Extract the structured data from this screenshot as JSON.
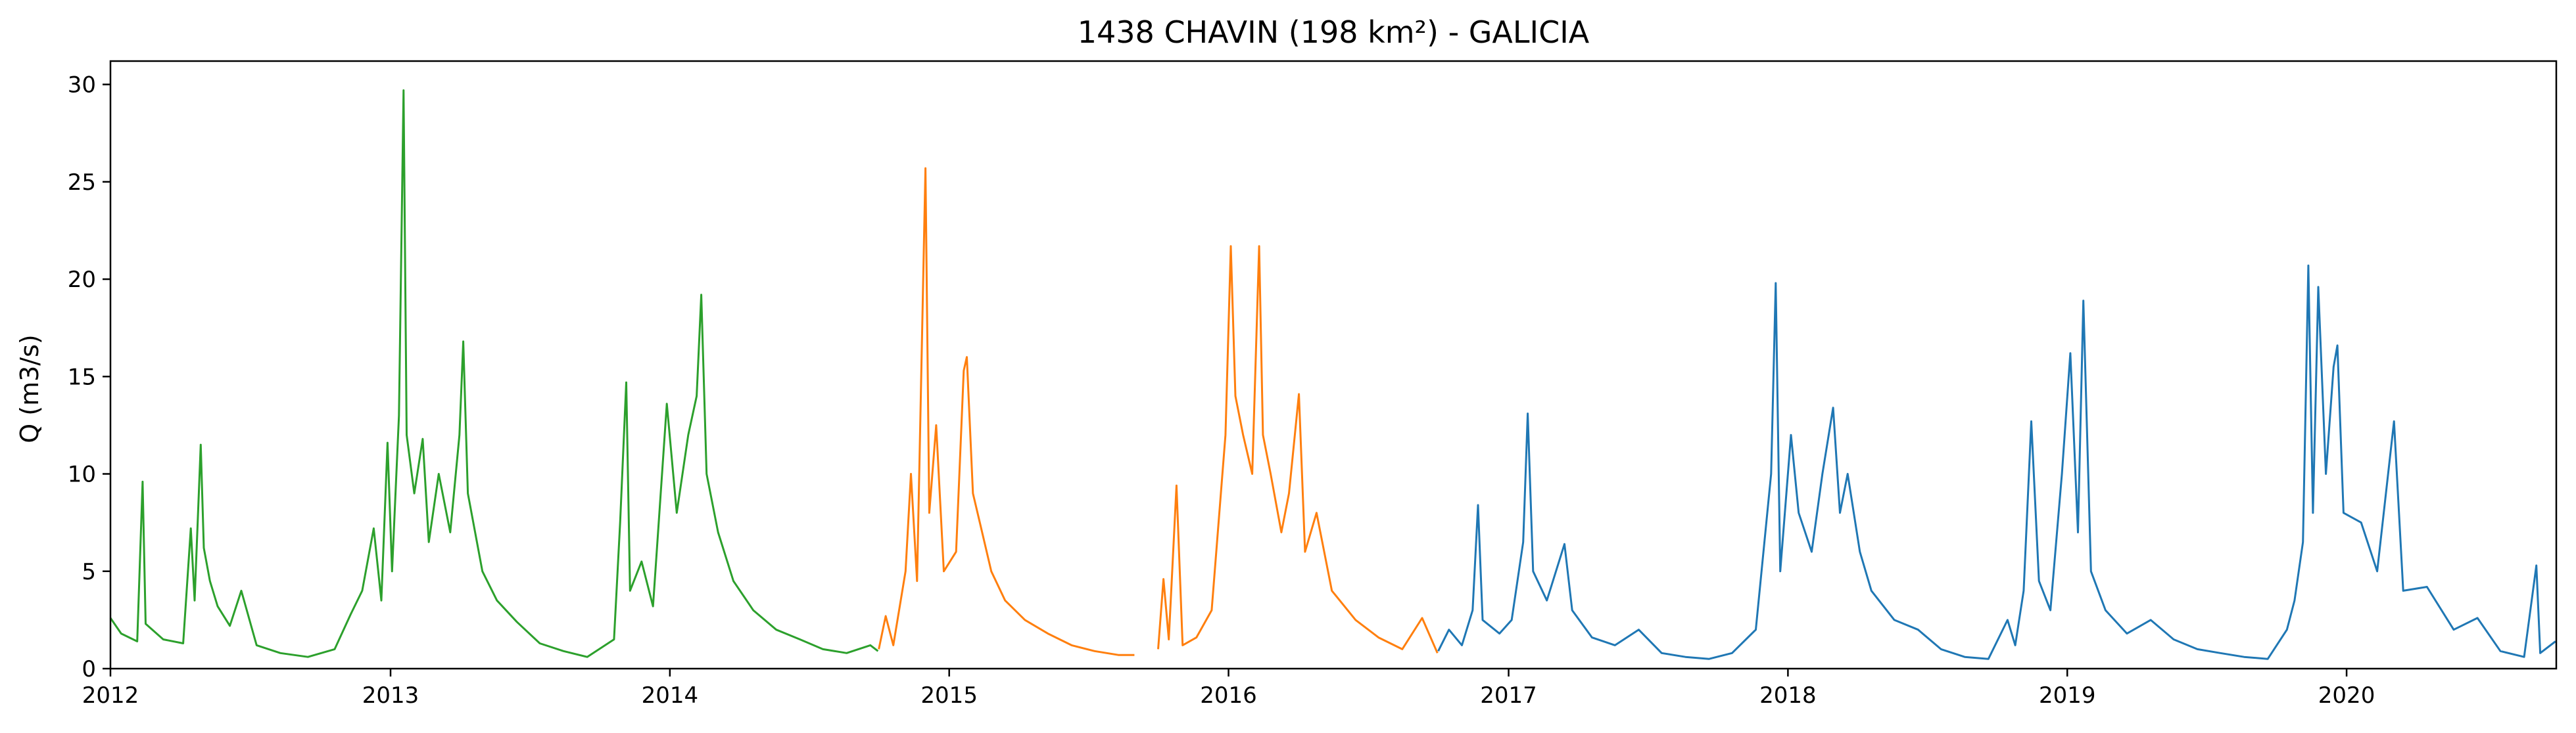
{
  "chart_data": {
    "type": "line",
    "title": "1438 CHAVIN (198 km²) - GALICIA",
    "xlabel": "",
    "ylabel": "Q (m3/s)",
    "x_unit": "date",
    "xlim": [
      "2012-01-01",
      "2020-10-01"
    ],
    "ylim": [
      0,
      31.2
    ],
    "xticks": [
      "2012",
      "2013",
      "2014",
      "2015",
      "2016",
      "2017",
      "2018",
      "2019",
      "2020"
    ],
    "yticks": [
      0,
      5,
      10,
      15,
      20,
      25,
      30
    ],
    "grid": false,
    "legend": "none",
    "series": [
      {
        "color": "#2ca02c",
        "points": [
          [
            "2012-01-01",
            2.6
          ],
          [
            "2012-01-15",
            1.8
          ],
          [
            "2012-02-05",
            1.4
          ],
          [
            "2012-02-12",
            9.6
          ],
          [
            "2012-02-16",
            2.3
          ],
          [
            "2012-03-10",
            1.5
          ],
          [
            "2012-04-05",
            1.3
          ],
          [
            "2012-04-15",
            7.2
          ],
          [
            "2012-04-20",
            3.5
          ],
          [
            "2012-04-28",
            11.5
          ],
          [
            "2012-05-02",
            6.2
          ],
          [
            "2012-05-10",
            4.5
          ],
          [
            "2012-05-20",
            3.2
          ],
          [
            "2012-06-05",
            2.2
          ],
          [
            "2012-06-20",
            4.0
          ],
          [
            "2012-07-10",
            1.2
          ],
          [
            "2012-08-10",
            0.8
          ],
          [
            "2012-09-15",
            0.6
          ],
          [
            "2012-10-20",
            1.0
          ],
          [
            "2012-11-10",
            2.8
          ],
          [
            "2012-11-25",
            4.0
          ],
          [
            "2012-12-10",
            7.2
          ],
          [
            "2012-12-20",
            3.5
          ],
          [
            "2012-12-28",
            11.6
          ],
          [
            "2013-01-03",
            5.0
          ],
          [
            "2013-01-12",
            13.0
          ],
          [
            "2013-01-18",
            29.7
          ],
          [
            "2013-01-22",
            12.0
          ],
          [
            "2013-02-01",
            9.0
          ],
          [
            "2013-02-12",
            11.8
          ],
          [
            "2013-02-20",
            6.5
          ],
          [
            "2013-03-05",
            10.0
          ],
          [
            "2013-03-20",
            7.0
          ],
          [
            "2013-04-01",
            12.0
          ],
          [
            "2013-04-06",
            16.8
          ],
          [
            "2013-04-12",
            9.0
          ],
          [
            "2013-05-01",
            5.0
          ],
          [
            "2013-05-20",
            3.5
          ],
          [
            "2013-06-15",
            2.4
          ],
          [
            "2013-07-15",
            1.3
          ],
          [
            "2013-08-15",
            0.9
          ],
          [
            "2013-09-15",
            0.6
          ],
          [
            "2013-10-20",
            1.5
          ],
          [
            "2013-10-28",
            7.5
          ],
          [
            "2013-11-05",
            14.7
          ],
          [
            "2013-11-10",
            4.0
          ],
          [
            "2013-11-25",
            5.5
          ],
          [
            "2013-12-10",
            3.2
          ],
          [
            "2013-12-28",
            13.6
          ],
          [
            "2014-01-10",
            8.0
          ],
          [
            "2014-01-25",
            12.0
          ],
          [
            "2014-02-05",
            14.0
          ],
          [
            "2014-02-11",
            19.2
          ],
          [
            "2014-02-18",
            10.0
          ],
          [
            "2014-03-05",
            7.0
          ],
          [
            "2014-03-25",
            4.5
          ],
          [
            "2014-04-20",
            3.0
          ],
          [
            "2014-05-20",
            2.0
          ],
          [
            "2014-06-20",
            1.5
          ],
          [
            "2014-07-20",
            1.0
          ],
          [
            "2014-08-20",
            0.8
          ],
          [
            "2014-09-20",
            1.2
          ],
          [
            "2014-09-30",
            0.9
          ]
        ]
      },
      {
        "color": "#ff7f0e",
        "points": [
          [
            "2014-10-01",
            1.0
          ],
          [
            "2014-10-10",
            2.7
          ],
          [
            "2014-10-20",
            1.2
          ],
          [
            "2014-11-05",
            5.0
          ],
          [
            "2014-11-12",
            10.0
          ],
          [
            "2014-11-20",
            4.5
          ],
          [
            "2014-12-01",
            25.7
          ],
          [
            "2014-12-06",
            8.0
          ],
          [
            "2014-12-15",
            12.5
          ],
          [
            "2014-12-25",
            5.0
          ],
          [
            "2015-01-10",
            6.0
          ],
          [
            "2015-01-20",
            15.3
          ],
          [
            "2015-01-24",
            16.0
          ],
          [
            "2015-02-01",
            9.0
          ],
          [
            "2015-02-10",
            7.5
          ],
          [
            "2015-02-25",
            5.0
          ],
          [
            "2015-03-15",
            3.5
          ],
          [
            "2015-04-10",
            2.5
          ],
          [
            "2015-05-10",
            1.8
          ],
          [
            "2015-06-10",
            1.2
          ],
          [
            "2015-07-10",
            0.9
          ],
          [
            "2015-08-10",
            0.7
          ],
          [
            "2015-08-31",
            0.7
          ],
          [
            "2015-09-20",
            null
          ],
          [
            "2015-10-01",
            1.0
          ],
          [
            "2015-10-08",
            4.6
          ],
          [
            "2015-10-15",
            1.5
          ],
          [
            "2015-10-25",
            9.4
          ],
          [
            "2015-11-02",
            1.2
          ],
          [
            "2015-11-20",
            1.6
          ],
          [
            "2015-12-10",
            3.0
          ],
          [
            "2015-12-28",
            12.0
          ],
          [
            "2016-01-04",
            21.7
          ],
          [
            "2016-01-10",
            14.0
          ],
          [
            "2016-01-20",
            12.0
          ],
          [
            "2016-02-01",
            10.0
          ],
          [
            "2016-02-10",
            21.7
          ],
          [
            "2016-02-15",
            12.0
          ],
          [
            "2016-02-25",
            10.0
          ],
          [
            "2016-03-10",
            7.0
          ],
          [
            "2016-03-20",
            9.0
          ],
          [
            "2016-04-02",
            14.1
          ],
          [
            "2016-04-10",
            6.0
          ],
          [
            "2016-04-25",
            8.0
          ],
          [
            "2016-05-15",
            4.0
          ],
          [
            "2016-06-15",
            2.5
          ],
          [
            "2016-07-15",
            1.6
          ],
          [
            "2016-08-15",
            1.0
          ],
          [
            "2016-09-10",
            2.6
          ],
          [
            "2016-09-30",
            0.8
          ]
        ]
      },
      {
        "color": "#1f77b4",
        "points": [
          [
            "2016-10-01",
            0.9
          ],
          [
            "2016-10-15",
            2.0
          ],
          [
            "2016-11-01",
            1.2
          ],
          [
            "2016-11-15",
            3.0
          ],
          [
            "2016-11-22",
            8.4
          ],
          [
            "2016-11-28",
            2.5
          ],
          [
            "2016-12-20",
            1.8
          ],
          [
            "2017-01-05",
            2.5
          ],
          [
            "2017-01-20",
            6.5
          ],
          [
            "2017-01-26",
            13.1
          ],
          [
            "2017-02-02",
            5.0
          ],
          [
            "2017-02-20",
            3.5
          ],
          [
            "2017-03-15",
            6.4
          ],
          [
            "2017-03-25",
            3.0
          ],
          [
            "2017-04-20",
            1.6
          ],
          [
            "2017-05-20",
            1.2
          ],
          [
            "2017-06-20",
            2.0
          ],
          [
            "2017-07-20",
            0.8
          ],
          [
            "2017-08-20",
            0.6
          ],
          [
            "2017-09-20",
            0.5
          ],
          [
            "2017-10-20",
            0.8
          ],
          [
            "2017-11-20",
            2.0
          ],
          [
            "2017-12-10",
            10.0
          ],
          [
            "2017-12-16",
            19.8
          ],
          [
            "2017-12-22",
            5.0
          ],
          [
            "2018-01-05",
            12.0
          ],
          [
            "2018-01-15",
            8.0
          ],
          [
            "2018-02-01",
            6.0
          ],
          [
            "2018-02-15",
            10.0
          ],
          [
            "2018-03-01",
            13.4
          ],
          [
            "2018-03-10",
            8.0
          ],
          [
            "2018-03-20",
            10.0
          ],
          [
            "2018-04-05",
            6.0
          ],
          [
            "2018-04-20",
            4.0
          ],
          [
            "2018-05-20",
            2.5
          ],
          [
            "2018-06-20",
            2.0
          ],
          [
            "2018-07-20",
            1.0
          ],
          [
            "2018-08-20",
            0.6
          ],
          [
            "2018-09-20",
            0.5
          ],
          [
            "2018-10-15",
            2.5
          ],
          [
            "2018-10-25",
            1.2
          ],
          [
            "2018-11-05",
            4.0
          ],
          [
            "2018-11-15",
            12.7
          ],
          [
            "2018-11-25",
            4.5
          ],
          [
            "2018-12-10",
            3.0
          ],
          [
            "2018-12-25",
            10.0
          ],
          [
            "2019-01-05",
            16.2
          ],
          [
            "2019-01-15",
            7.0
          ],
          [
            "2019-01-22",
            18.9
          ],
          [
            "2019-02-01",
            5.0
          ],
          [
            "2019-02-20",
            3.0
          ],
          [
            "2019-03-20",
            1.8
          ],
          [
            "2019-04-20",
            2.5
          ],
          [
            "2019-05-20",
            1.5
          ],
          [
            "2019-06-20",
            1.0
          ],
          [
            "2019-07-20",
            0.8
          ],
          [
            "2019-08-20",
            0.6
          ],
          [
            "2019-09-20",
            0.5
          ],
          [
            "2019-10-15",
            2.0
          ],
          [
            "2019-10-25",
            3.5
          ],
          [
            "2019-11-05",
            6.5
          ],
          [
            "2019-11-12",
            20.7
          ],
          [
            "2019-11-18",
            8.0
          ],
          [
            "2019-11-25",
            19.6
          ],
          [
            "2019-12-05",
            10.0
          ],
          [
            "2019-12-15",
            15.5
          ],
          [
            "2019-12-20",
            16.6
          ],
          [
            "2019-12-28",
            8.0
          ],
          [
            "2020-01-20",
            7.5
          ],
          [
            "2020-02-10",
            5.0
          ],
          [
            "2020-03-03",
            12.7
          ],
          [
            "2020-03-15",
            4.0
          ],
          [
            "2020-04-15",
            4.2
          ],
          [
            "2020-05-20",
            2.0
          ],
          [
            "2020-06-20",
            2.6
          ],
          [
            "2020-07-20",
            0.9
          ],
          [
            "2020-08-20",
            0.6
          ],
          [
            "2020-09-05",
            5.3
          ],
          [
            "2020-09-10",
            0.8
          ],
          [
            "2020-09-30",
            1.4
          ]
        ]
      }
    ]
  }
}
